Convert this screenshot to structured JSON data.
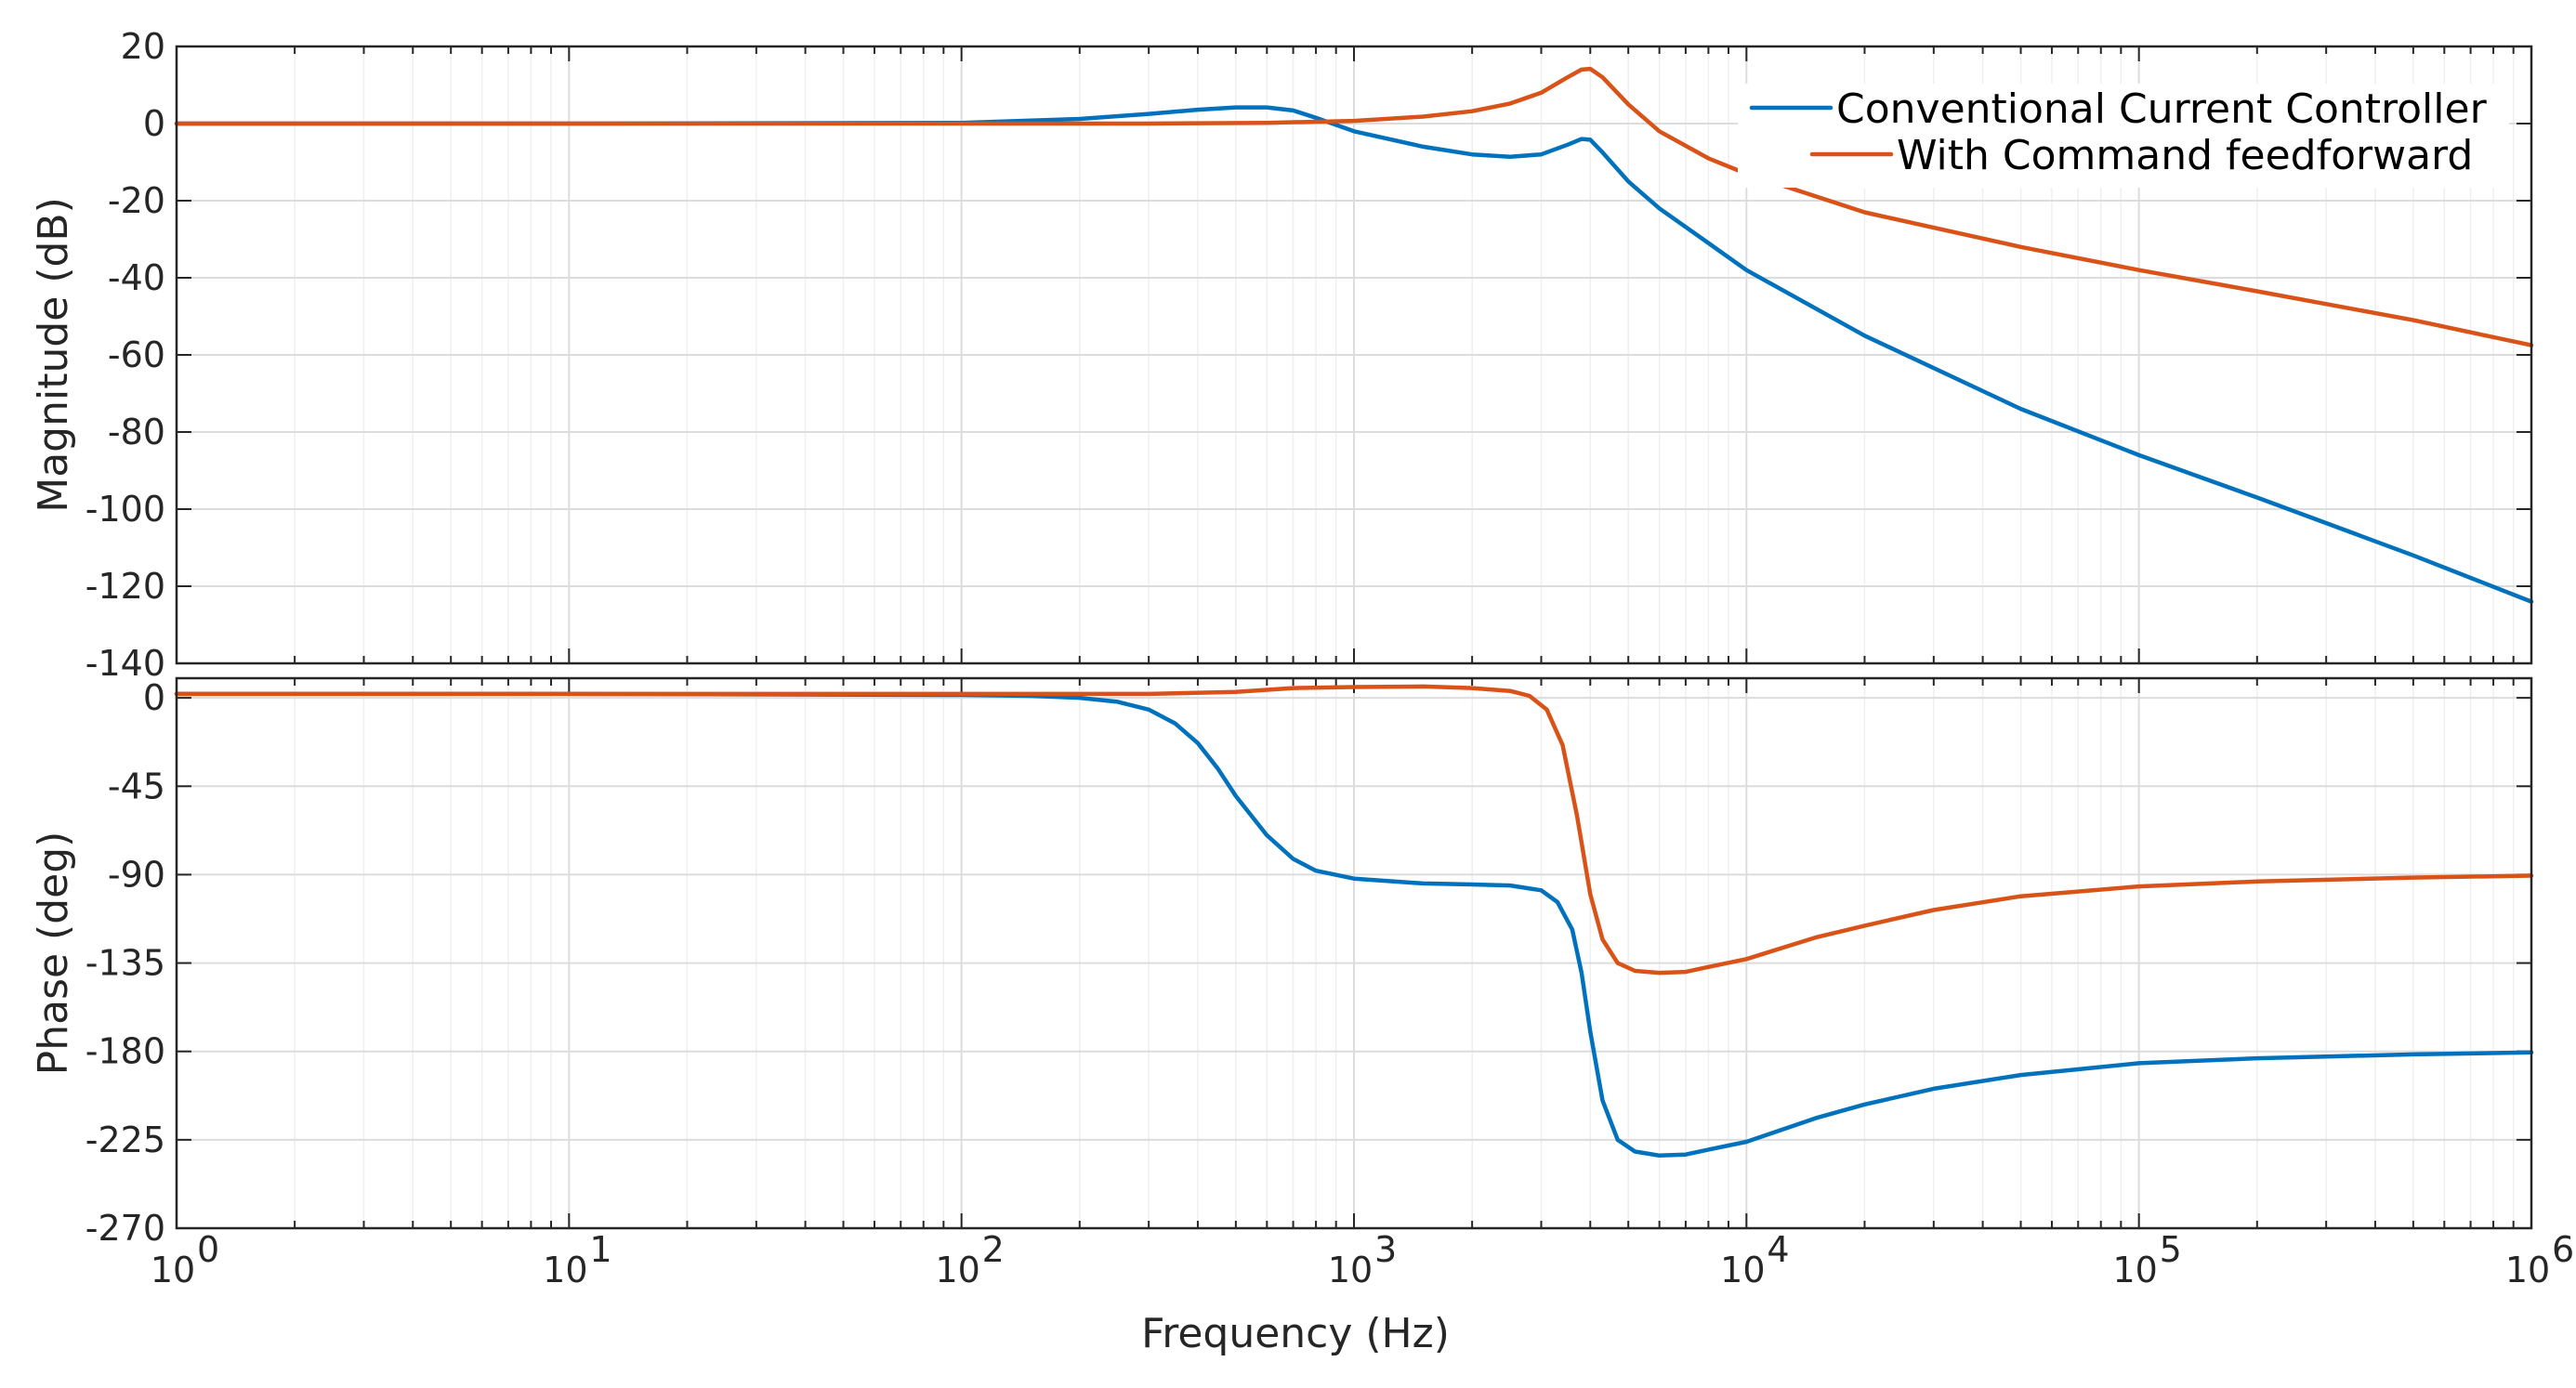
{
  "chart_data": {
    "type": "line",
    "xscale": "log",
    "xlim": [
      1,
      1000000
    ],
    "xlabel": "Frequency (Hz)",
    "x_ticks": [
      {
        "base": "10",
        "exp": "0"
      },
      {
        "base": "10",
        "exp": "1"
      },
      {
        "base": "10",
        "exp": "2"
      },
      {
        "base": "10",
        "exp": "3"
      },
      {
        "base": "10",
        "exp": "4"
      },
      {
        "base": "10",
        "exp": "5"
      },
      {
        "base": "10",
        "exp": "6"
      }
    ],
    "colors": {
      "conventional": "#0072BD",
      "feedforward": "#D95319"
    },
    "legend": {
      "position": "top-right",
      "entries": [
        "Conventional Current Controller",
        "With Command feedforward"
      ]
    },
    "panels": [
      {
        "name": "magnitude",
        "ylabel": "Magnitude (dB)",
        "ylim": [
          -140,
          20
        ],
        "yticks": [
          20,
          0,
          -20,
          -40,
          -60,
          -80,
          -100,
          -120,
          -140
        ],
        "ytick_labels": [
          "20",
          "0",
          "-20",
          "-40",
          "-60",
          "-80",
          "-100",
          "-120",
          "-140"
        ],
        "series": [
          {
            "name": "Conventional Current Controller",
            "color": "#0072BD",
            "x": [
              1,
              10,
              100,
              200,
              300,
              400,
              500,
              600,
              700,
              800,
              1000,
              1500,
              2000,
              2500,
              3000,
              3500,
              3800,
              4000,
              4300,
              5000,
              6000,
              8000,
              10000,
              20000,
              50000,
              100000,
              200000,
              500000,
              1000000
            ],
            "y": [
              0,
              0,
              0.2,
              1.2,
              2.5,
              3.6,
              4.2,
              4.2,
              3.4,
              1.5,
              -2,
              -6,
              -8,
              -8.6,
              -8,
              -5.5,
              -4,
              -4.2,
              -7.5,
              -15,
              -22,
              -31,
              -38,
              -55,
              -74,
              -86,
              -97,
              -112,
              -124
            ]
          },
          {
            "name": "With Command feedforward",
            "color": "#D95319",
            "x": [
              1,
              10,
              100,
              300,
              600,
              1000,
              1500,
              2000,
              2500,
              3000,
              3500,
              3800,
              4000,
              4300,
              5000,
              6000,
              8000,
              10000,
              20000,
              50000,
              100000,
              200000,
              500000,
              1000000
            ],
            "y": [
              0,
              0,
              0,
              0,
              0.2,
              0.7,
              1.8,
              3.2,
              5.2,
              8,
              12,
              14,
              14.2,
              12,
              5,
              -2,
              -9,
              -13,
              -23,
              -32,
              -38,
              -43.5,
              -51,
              -57.5
            ]
          }
        ]
      },
      {
        "name": "phase",
        "ylabel": "Phase (deg)",
        "ylim": [
          -270,
          10
        ],
        "yticks": [
          0,
          -45,
          -90,
          -135,
          -180,
          -225,
          -270
        ],
        "ytick_labels": [
          "0",
          "-45",
          "-90",
          "-135",
          "-180",
          "-225",
          "-270"
        ],
        "series": [
          {
            "name": "Conventional Current Controller",
            "color": "#0072BD",
            "x": [
              1,
              10,
              100,
              150,
              200,
              250,
              300,
              350,
              400,
              450,
              500,
              600,
              700,
              800,
              1000,
              1500,
              2000,
              2500,
              3000,
              3300,
              3600,
              3800,
              4000,
              4300,
              4700,
              5200,
              6000,
              7000,
              8000,
              10000,
              15000,
              20000,
              30000,
              50000,
              100000,
              200000,
              500000,
              1000000
            ],
            "y": [
              2,
              2,
              1.5,
              1,
              0,
              -2,
              -6,
              -13,
              -23,
              -36,
              -50,
              -70,
              -82,
              -88,
              -92,
              -94.5,
              -95,
              -95.5,
              -98,
              -104,
              -118,
              -140,
              -170,
              -205,
              -225,
              -231,
              -233,
              -232.5,
              -230,
              -226,
              -214,
              -207,
              -199,
              -192,
              -186,
              -183.5,
              -181.5,
              -180.5
            ]
          },
          {
            "name": "With Command feedforward",
            "color": "#D95319",
            "x": [
              1,
              10,
              100,
              300,
              500,
              700,
              1000,
              1500,
              2000,
              2500,
              2800,
              3100,
              3400,
              3700,
              4000,
              4300,
              4700,
              5200,
              6000,
              7000,
              8000,
              10000,
              15000,
              20000,
              30000,
              50000,
              100000,
              200000,
              500000,
              1000000
            ],
            "y": [
              2,
              2,
              2,
              2,
              3,
              5,
              5.5,
              5.8,
              5,
              3.5,
              1,
              -6,
              -24,
              -60,
              -100,
              -123,
              -135,
              -139,
              -140,
              -139.5,
              -137,
              -133,
              -122,
              -116,
              -108,
              -101,
              -96,
              -93.5,
              -91.5,
              -90.5
            ]
          }
        ]
      }
    ]
  }
}
